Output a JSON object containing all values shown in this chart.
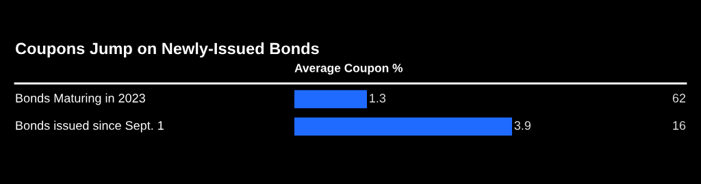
{
  "chart_data": {
    "type": "bar",
    "orientation": "horizontal",
    "title": "Coupons Jump on Newly-Issued Bonds",
    "xlabel": "Average Coupon %",
    "categories": [
      "Bonds Maturing in 2023",
      "Bonds issued since Sept. 1"
    ],
    "values": [
      1.3,
      3.9
    ],
    "color": "#1f6bff",
    "data_labels": true,
    "annotations": [
      "62",
      "16"
    ]
  }
}
